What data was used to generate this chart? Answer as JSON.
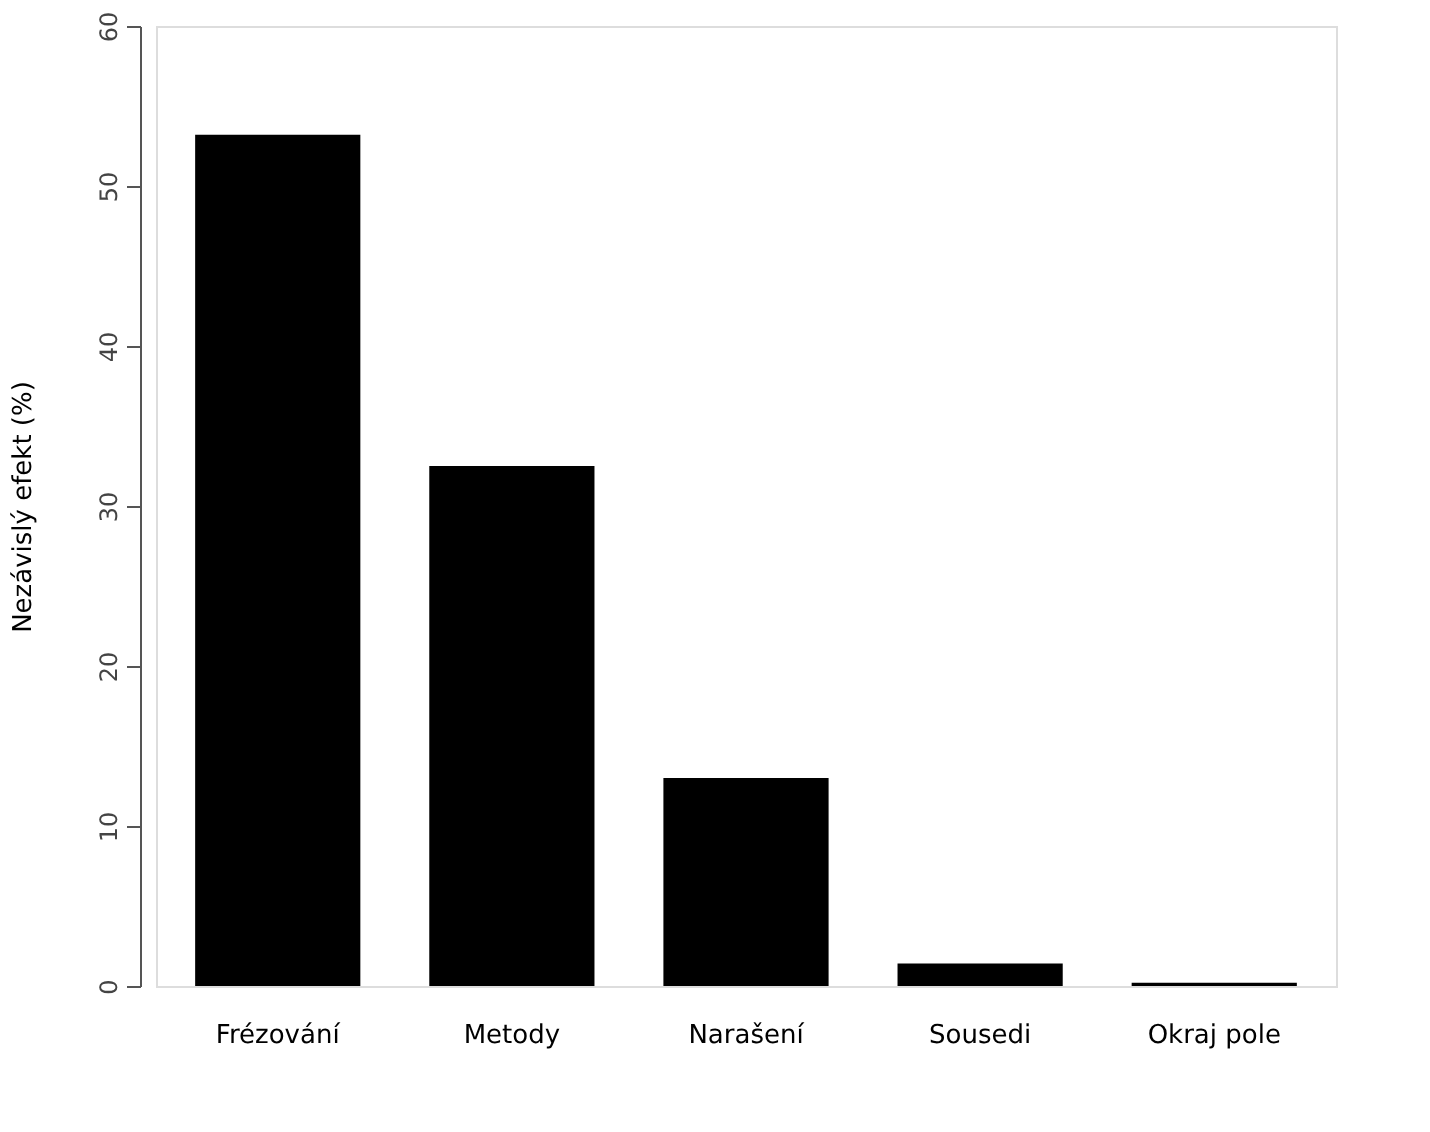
{
  "chart_data": {
    "type": "bar",
    "ylabel": "Nezávislý efekt (%)",
    "categories": [
      "Frézování",
      "Metody",
      "Narašení",
      "Sousedi",
      "Okraj pole"
    ],
    "values": [
      53.2,
      32.5,
      13.0,
      1.4,
      0.2
    ],
    "color": "#000000",
    "ylim": [
      0,
      60
    ],
    "yticks": [
      0,
      10,
      20,
      30,
      40,
      50,
      60
    ],
    "grid": false
  }
}
